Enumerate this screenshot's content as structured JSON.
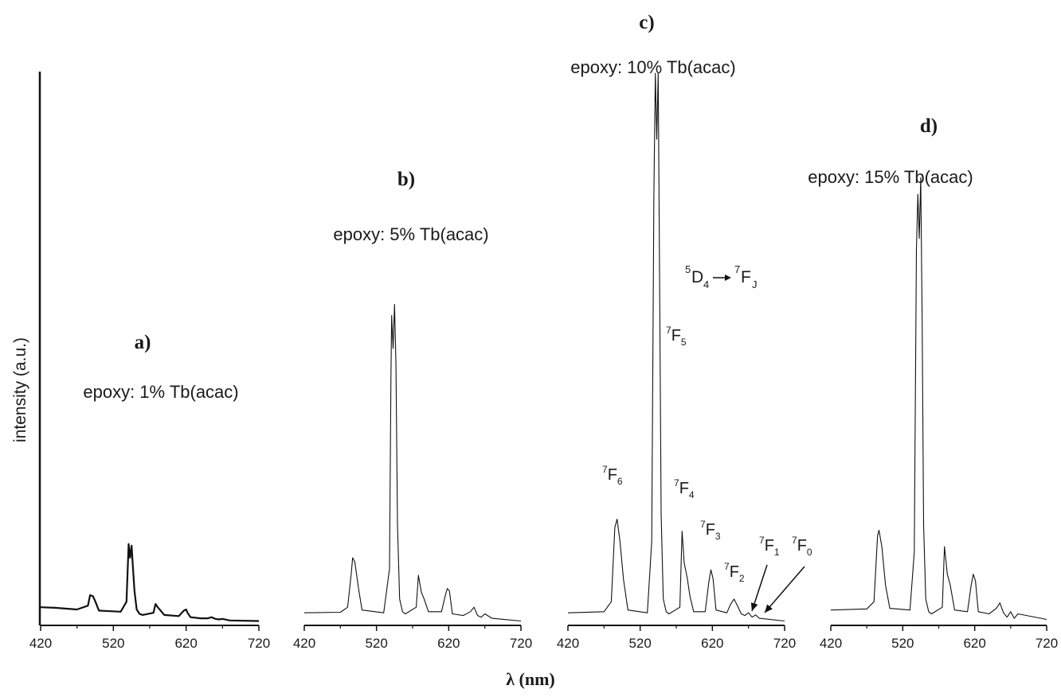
{
  "figure": {
    "ylabel": "intensity (a.u.)",
    "xlabel": "λ (nm)",
    "transition_label": {
      "upper": "5",
      "upper_state": "D",
      "upper_sub": "4",
      "lower": "7",
      "lower_state": "F",
      "lower_sub": "J"
    }
  },
  "colors": {
    "line": "#111111",
    "background": "#ffffff"
  },
  "chart_data": [
    {
      "type": "line",
      "panel": "a)",
      "title": "epoxy: 1% Tb(acac)",
      "xlim": [
        420,
        720
      ],
      "xticks": [
        420,
        520,
        620,
        720
      ],
      "ylim": [
        0,
        1
      ],
      "grid": false,
      "x": [
        420,
        440,
        470,
        485,
        488,
        492,
        496,
        500,
        530,
        538,
        541,
        543,
        545,
        547,
        549,
        552,
        556,
        560,
        575,
        578,
        581,
        585,
        590,
        610,
        617,
        620,
        622,
        626,
        640,
        650,
        655,
        660,
        665,
        670,
        680,
        720
      ],
      "values": [
        0.03,
        0.029,
        0.026,
        0.033,
        0.052,
        0.05,
        0.038,
        0.024,
        0.022,
        0.04,
        0.145,
        0.12,
        0.142,
        0.1,
        0.06,
        0.026,
        0.018,
        0.016,
        0.02,
        0.036,
        0.03,
        0.024,
        0.016,
        0.014,
        0.024,
        0.026,
        0.02,
        0.012,
        0.01,
        0.01,
        0.012,
        0.009,
        0.008,
        0.009,
        0.006,
        0.005
      ]
    },
    {
      "type": "line",
      "panel": "b)",
      "title": "epoxy: 5% Tb(acac)",
      "xlim": [
        420,
        720
      ],
      "xticks": [
        420,
        520,
        620,
        720
      ],
      "ylim": [
        0,
        1
      ],
      "grid": false,
      "x": [
        420,
        470,
        480,
        485,
        487,
        490,
        495,
        500,
        530,
        538,
        540,
        541,
        543,
        545,
        547,
        549,
        552,
        556,
        560,
        575,
        578,
        582,
        586,
        592,
        610,
        615,
        618,
        621,
        625,
        640,
        650,
        655,
        660,
        665,
        670,
        680,
        720
      ],
      "values": [
        0.02,
        0.021,
        0.03,
        0.09,
        0.12,
        0.112,
        0.065,
        0.025,
        0.02,
        0.1,
        0.45,
        0.56,
        0.5,
        0.58,
        0.47,
        0.18,
        0.045,
        0.022,
        0.018,
        0.03,
        0.088,
        0.058,
        0.045,
        0.022,
        0.022,
        0.05,
        0.064,
        0.06,
        0.018,
        0.015,
        0.022,
        0.03,
        0.015,
        0.012,
        0.018,
        0.01,
        0.005
      ]
    },
    {
      "type": "line",
      "panel": "c)",
      "title": "epoxy: 10% Tb(acac)",
      "xlim": [
        420,
        720
      ],
      "xticks": [
        420,
        520,
        620,
        720
      ],
      "ylim": [
        0,
        1
      ],
      "grid": false,
      "x": [
        420,
        470,
        480,
        485,
        488,
        492,
        497,
        503,
        530,
        536,
        539,
        541,
        543,
        545,
        547,
        549,
        552,
        556,
        560,
        575,
        578,
        581,
        585,
        589,
        594,
        610,
        615,
        618,
        621,
        625,
        640,
        645,
        650,
        655,
        660,
        665,
        670,
        675,
        680,
        685,
        720
      ],
      "values": [
        0.02,
        0.022,
        0.04,
        0.175,
        0.19,
        0.15,
        0.08,
        0.025,
        0.02,
        0.15,
        0.78,
        1.0,
        0.88,
        1.0,
        0.62,
        0.2,
        0.045,
        0.022,
        0.018,
        0.03,
        0.168,
        0.11,
        0.085,
        0.05,
        0.022,
        0.022,
        0.075,
        0.098,
        0.082,
        0.025,
        0.02,
        0.035,
        0.045,
        0.032,
        0.018,
        0.015,
        0.02,
        0.012,
        0.016,
        0.01,
        0.005
      ],
      "annotations": [
        {
          "text": "7F6",
          "sup": "7",
          "base": "F",
          "sub": "6"
        },
        {
          "text": "7F5",
          "sup": "7",
          "base": "F",
          "sub": "5"
        },
        {
          "text": "7F4",
          "sup": "7",
          "base": "F",
          "sub": "4"
        },
        {
          "text": "7F3",
          "sup": "7",
          "base": "F",
          "sub": "3"
        },
        {
          "text": "7F2",
          "sup": "7",
          "base": "F",
          "sub": "2"
        },
        {
          "text": "7F1",
          "sup": "7",
          "base": "F",
          "sub": "1"
        },
        {
          "text": "7F0",
          "sup": "7",
          "base": "F",
          "sub": "0"
        }
      ]
    },
    {
      "type": "line",
      "panel": "d)",
      "title": "epoxy: 15% Tb(acac)",
      "xlim": [
        420,
        720
      ],
      "xticks": [
        420,
        520,
        620,
        720
      ],
      "ylim": [
        0,
        1
      ],
      "grid": false,
      "x": [
        420,
        470,
        480,
        485,
        487,
        491,
        496,
        502,
        530,
        536,
        539,
        541,
        543,
        545,
        547,
        549,
        552,
        556,
        560,
        575,
        578,
        582,
        586,
        592,
        610,
        615,
        618,
        621,
        625,
        640,
        650,
        655,
        660,
        665,
        670,
        675,
        680,
        720
      ],
      "values": [
        0.025,
        0.027,
        0.04,
        0.16,
        0.17,
        0.14,
        0.07,
        0.028,
        0.025,
        0.13,
        0.68,
        0.78,
        0.7,
        0.81,
        0.55,
        0.18,
        0.045,
        0.022,
        0.018,
        0.03,
        0.14,
        0.09,
        0.07,
        0.025,
        0.022,
        0.07,
        0.09,
        0.078,
        0.022,
        0.018,
        0.028,
        0.038,
        0.02,
        0.012,
        0.022,
        0.01,
        0.018,
        0.008
      ]
    }
  ]
}
